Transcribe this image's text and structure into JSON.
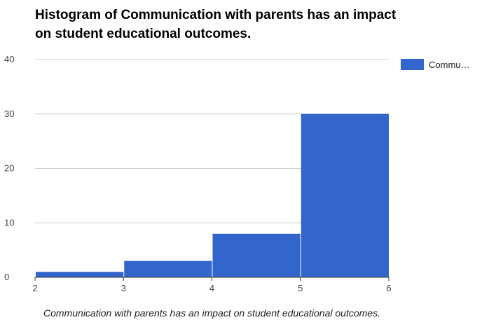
{
  "colors": {
    "bar": "#3366cc",
    "gridline": "#cccccc",
    "baseline": "#333333"
  },
  "chart_data": {
    "type": "bar",
    "title": "Histogram of Communication with parents has an impact on student educational outcomes.",
    "xlabel": "Communication with parents has an impact on student educational outcomes.",
    "ylabel": "",
    "bins": [
      {
        "x0": 2,
        "x1": 3,
        "value": 1
      },
      {
        "x0": 3,
        "x1": 4,
        "value": 3
      },
      {
        "x0": 4,
        "x1": 5,
        "value": 8
      },
      {
        "x0": 5,
        "x1": 6,
        "value": 30
      }
    ],
    "series": [
      {
        "name": "Commu…",
        "values": [
          1,
          3,
          8,
          30
        ]
      }
    ],
    "xlim": [
      2,
      6
    ],
    "ylim": [
      0,
      40
    ],
    "x_ticks": [
      "2",
      "3",
      "4",
      "5",
      "6"
    ],
    "y_ticks": [
      "0",
      "10",
      "20",
      "30",
      "40"
    ],
    "grid": true,
    "legend_position": "right"
  }
}
